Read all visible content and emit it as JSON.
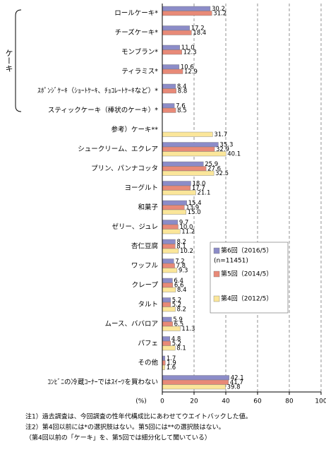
{
  "chart_data": {
    "type": "bar",
    "orientation": "horizontal",
    "bracket_label": "ケーキ",
    "categories": [
      "ロールケーキ*",
      "チーズケーキ*",
      "モンブラン*",
      "ティラミス*",
      "ｽﾎﾟﾝｼﾞｹｰｷ（ｼｮｰﾄｹｰｷ、ﾁｮｺﾚｰﾄｹｰｷなど）*",
      "スティックケーキ（棒状のケーキ）*",
      "参考）ケーキ**",
      "シュークリーム、エクレア",
      "プリン、パンナコッタ",
      "ヨーグルト",
      "和菓子",
      "ゼリー、ジュレ",
      "杏仁豆腐",
      "ワッフル",
      "クレープ",
      "タルト",
      "ムース、ババロア",
      "パフェ",
      "その他",
      "ｺﾝﾋﾞﾆの冷蔵ｺｰﾅｰではｽｲｰﾂを買わない"
    ],
    "series": [
      {
        "name": "第6回（2016/5）",
        "note": "(n=11451)",
        "color": "#8c8cc8",
        "values": [
          30.2,
          17.2,
          11.0,
          10.6,
          8.4,
          7.6,
          null,
          35.3,
          25.9,
          18.0,
          15.4,
          9.7,
          8.2,
          7.2,
          6.4,
          5.2,
          5.9,
          4.8,
          1.7,
          42.1
        ],
        "value_labels": [
          "30.2",
          "17.2",
          "11.0",
          "10.6",
          "8.4",
          "7.6",
          null,
          "35.3",
          "25.9",
          "18.0",
          "15.4",
          "9.7",
          "8.2",
          "7.2",
          "6.4",
          "5.2",
          "5.9",
          "4.8",
          "1.7",
          "42.1"
        ]
      },
      {
        "name": "第5回（2014/5）",
        "color": "#e88a78",
        "values": [
          31.2,
          18.4,
          12.3,
          12.9,
          8.8,
          8.5,
          null,
          32.9,
          27.6,
          17.7,
          13.9,
          10.0,
          8.1,
          7.8,
          6.6,
          5.2,
          6.5,
          5.2,
          1.9,
          41.7
        ],
        "value_labels": [
          "31.2",
          "18.4",
          "12.3",
          "12.9",
          "8.8",
          "8.5",
          null,
          "32.9",
          "27.6",
          "17.7",
          "13.9",
          "10.0",
          "8.1",
          "7.8",
          "6.6",
          "5.2",
          "6.5",
          "5.2",
          "1.9",
          "41.7"
        ]
      },
      {
        "name": "第4回（2012/5）",
        "color": "#fbe69a",
        "values": [
          null,
          null,
          null,
          null,
          null,
          null,
          31.7,
          40.1,
          32.5,
          21.1,
          15.0,
          11.2,
          10.2,
          9.3,
          8.4,
          8.2,
          11.3,
          8.1,
          1.6,
          39.8
        ],
        "value_labels": [
          null,
          null,
          null,
          null,
          null,
          null,
          "31.7",
          "40.1",
          "32.5",
          "21.1",
          "15.0",
          "11.2",
          "10.2",
          "9.3",
          "8.4",
          "8.2",
          "11.3",
          "8.1",
          "1.6",
          "39.8"
        ]
      }
    ],
    "xlim": [
      0,
      100
    ],
    "xticks": [
      0,
      20,
      40,
      60,
      80,
      100
    ],
    "x_unit": "(%)",
    "grid": true,
    "notes": [
      "注1）過去調査は、今回調査の性年代構成比にあわせてウエイトバックした値。",
      "注2）第4回以前には*の選択肢はない。第5回には**の選択肢はない。",
      "（第4回以前の「ケーキ」を、第5回では細分化して聞いている）"
    ]
  }
}
